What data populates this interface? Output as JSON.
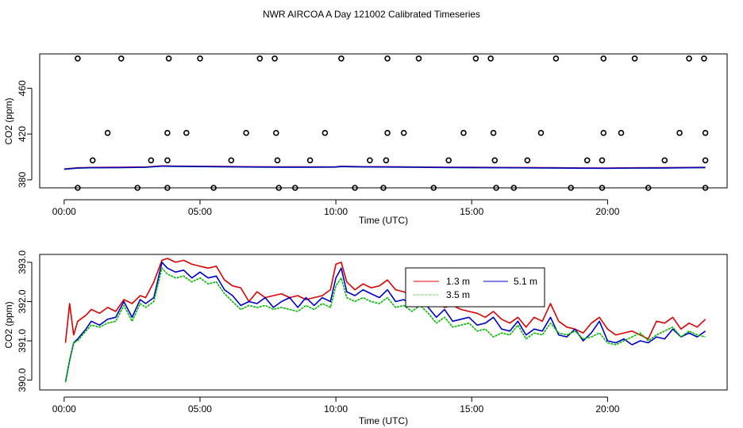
{
  "page_title": "NWR AIRCOA A  Day 121002  Calibrated Timeseries",
  "chart_data": [
    {
      "type": "line",
      "panel": "top",
      "xlabel": "Time (UTC)",
      "ylabel": "CO2 (ppm)",
      "xlim": [
        -0.9,
        24.4
      ],
      "ylim": [
        373,
        490
      ],
      "x_ticks": [
        0,
        5,
        10,
        15,
        20
      ],
      "x_tick_labels": [
        "00:00",
        "05:00",
        "10:00",
        "15:00",
        "20:00"
      ],
      "y_ticks": [
        380,
        420,
        460
      ],
      "y_tick_labels": [
        "380",
        "420",
        "460"
      ],
      "line_series": [
        {
          "name": "1.3 m",
          "color": "#dd0000",
          "x": [
            0,
            0.5,
            1,
            2,
            3,
            3.6,
            4,
            5,
            6,
            7,
            8,
            9,
            10,
            10.2,
            11,
            12,
            13,
            14,
            15,
            16,
            17,
            18,
            19,
            20,
            21,
            22,
            23,
            23.6
          ],
          "y": [
            389.5,
            390.5,
            390.8,
            390.9,
            391.2,
            392.2,
            392.0,
            391.8,
            391.6,
            391.4,
            391.3,
            391.3,
            391.4,
            391.8,
            391.5,
            391.4,
            391.2,
            391.0,
            390.9,
            390.8,
            390.7,
            390.6,
            390.4,
            390.3,
            390.5,
            390.6,
            390.8,
            390.9
          ]
        },
        {
          "name": "3.5 m",
          "color": "#00bb00",
          "x": [
            0,
            0.5,
            1,
            2,
            3,
            3.6,
            4,
            5,
            6,
            7,
            8,
            9,
            10,
            10.2,
            11,
            12,
            13,
            14,
            15,
            16,
            17,
            18,
            19,
            20,
            21,
            22,
            23,
            23.6
          ],
          "y": [
            389.2,
            390.2,
            390.5,
            390.6,
            390.9,
            391.9,
            391.7,
            391.5,
            391.3,
            391.1,
            391.0,
            391.0,
            391.1,
            391.5,
            391.2,
            391.1,
            390.9,
            390.7,
            390.6,
            390.5,
            390.4,
            390.3,
            390.1,
            390.0,
            390.2,
            390.3,
            390.5,
            390.6
          ]
        },
        {
          "name": "5.1 m",
          "color": "#0000cc",
          "x": [
            0,
            0.5,
            1,
            2,
            3,
            3.6,
            4,
            5,
            6,
            7,
            8,
            9,
            10,
            10.2,
            11,
            12,
            13,
            14,
            15,
            16,
            17,
            18,
            19,
            20,
            21,
            22,
            23,
            23.6
          ],
          "y": [
            389.3,
            390.3,
            390.6,
            390.7,
            391.0,
            392.0,
            391.8,
            391.6,
            391.4,
            391.2,
            391.1,
            391.1,
            391.2,
            391.6,
            391.3,
            391.2,
            391.0,
            390.8,
            390.7,
            390.6,
            390.5,
            390.4,
            390.2,
            390.1,
            390.3,
            390.4,
            390.6,
            390.7
          ]
        }
      ],
      "scatter_series": {
        "name": "flags",
        "marker": "open-circle",
        "x": [
          0.5,
          2.1,
          3.85,
          5.0,
          7.2,
          7.75,
          10.2,
          11.9,
          13.05,
          15.15,
          15.7,
          18.1,
          19.85,
          21.0,
          23.0,
          23.55,
          1.6,
          3.8,
          4.5,
          6.7,
          7.8,
          9.6,
          11.9,
          12.5,
          14.7,
          15.8,
          17.55,
          19.85,
          20.5,
          22.65,
          23.6,
          1.05,
          3.2,
          3.8,
          6.15,
          7.85,
          9.05,
          11.25,
          11.85,
          14.15,
          15.85,
          17.05,
          19.25,
          19.8,
          22.1,
          23.6,
          0.5,
          2.7,
          3.8,
          5.5,
          7.9,
          8.5,
          10.7,
          11.75,
          13.6,
          15.9,
          16.55,
          18.65,
          19.8,
          21.5,
          23.6
        ],
        "y": [
          486,
          486,
          486,
          486,
          486,
          486,
          486,
          486,
          486,
          486,
          486,
          486,
          486,
          486,
          486,
          486,
          421,
          421,
          421,
          421,
          421,
          421,
          421,
          421,
          421,
          421,
          421,
          421,
          421,
          421,
          421,
          397,
          397,
          397,
          397,
          397,
          397,
          397,
          397,
          397,
          397,
          397,
          397,
          397,
          397,
          397,
          373,
          373,
          373,
          373,
          373,
          373,
          373,
          373,
          373,
          373,
          373,
          373,
          373,
          373,
          373
        ]
      }
    },
    {
      "type": "line",
      "panel": "bottom",
      "xlabel": "Time (UTC)",
      "ylabel": "CO2 (ppm)",
      "xlim": [
        -0.9,
        24.4
      ],
      "ylim": [
        389.75,
        393.2
      ],
      "x_ticks": [
        0,
        5,
        10,
        15,
        20
      ],
      "x_tick_labels": [
        "00:00",
        "05:00",
        "10:00",
        "15:00",
        "20:00"
      ],
      "y_ticks": [
        390.0,
        391.0,
        392.0,
        393.0
      ],
      "y_tick_labels": [
        "390.0",
        "391.0",
        "392.0",
        "393.0"
      ],
      "legend": {
        "position": "top-center-right",
        "entries": [
          {
            "label": "1.3 m",
            "color": "#dd0000"
          },
          {
            "label": "5.1 m",
            "color": "#0000cc"
          },
          {
            "label": "3.5 m",
            "color": "#00bb00"
          }
        ]
      },
      "series": [
        {
          "name": "1.3 m",
          "color": "#dd0000",
          "x": [
            0.05,
            0.2,
            0.35,
            0.5,
            0.8,
            1.0,
            1.3,
            1.6,
            1.9,
            2.2,
            2.5,
            2.8,
            3.0,
            3.3,
            3.6,
            3.8,
            4.1,
            4.4,
            4.7,
            5.0,
            5.3,
            5.6,
            5.9,
            6.2,
            6.5,
            6.8,
            7.1,
            7.4,
            7.7,
            8.0,
            8.3,
            8.6,
            8.9,
            9.2,
            9.5,
            9.8,
            10.0,
            10.2,
            10.4,
            10.7,
            11.0,
            11.3,
            11.6,
            11.9,
            12.2,
            12.5,
            12.8,
            13.1,
            13.4,
            13.7,
            14.0,
            14.3,
            14.6,
            14.9,
            15.2,
            15.5,
            15.8,
            16.1,
            16.4,
            16.7,
            17.0,
            17.3,
            17.6,
            17.9,
            18.2,
            18.5,
            18.8,
            19.1,
            19.4,
            19.7,
            20.0,
            20.3,
            20.6,
            20.9,
            21.2,
            21.5,
            21.8,
            22.1,
            22.4,
            22.7,
            23.0,
            23.3,
            23.6
          ],
          "y": [
            390.95,
            391.95,
            391.15,
            391.5,
            391.65,
            391.8,
            391.7,
            391.85,
            391.75,
            392.05,
            391.95,
            392.15,
            392.1,
            392.5,
            393.05,
            393.1,
            393.0,
            393.05,
            392.95,
            392.9,
            392.85,
            392.9,
            392.55,
            392.4,
            392.35,
            392.0,
            392.25,
            392.1,
            392.15,
            392.2,
            392.1,
            392.15,
            392.05,
            392.1,
            392.15,
            392.3,
            392.95,
            393.0,
            392.5,
            392.3,
            392.45,
            392.35,
            392.4,
            392.55,
            392.3,
            392.25,
            392.15,
            392.1,
            392.2,
            392.0,
            391.85,
            391.9,
            391.8,
            391.75,
            391.7,
            391.6,
            391.75,
            391.55,
            391.45,
            391.6,
            391.35,
            391.6,
            391.5,
            391.95,
            391.5,
            391.35,
            391.3,
            391.2,
            391.45,
            391.6,
            391.3,
            391.15,
            391.2,
            391.25,
            391.15,
            391.05,
            391.5,
            391.45,
            391.6,
            391.3,
            391.45,
            391.35,
            391.55
          ]
        },
        {
          "name": "5.1 m",
          "color": "#0000cc",
          "x": [
            0.05,
            0.2,
            0.35,
            0.5,
            0.8,
            1.0,
            1.3,
            1.6,
            1.9,
            2.2,
            2.5,
            2.8,
            3.0,
            3.3,
            3.6,
            3.8,
            4.1,
            4.4,
            4.7,
            5.0,
            5.3,
            5.6,
            5.9,
            6.2,
            6.5,
            6.8,
            7.1,
            7.4,
            7.7,
            8.0,
            8.3,
            8.6,
            8.9,
            9.2,
            9.5,
            9.8,
            10.0,
            10.2,
            10.4,
            10.7,
            11.0,
            11.3,
            11.6,
            11.9,
            12.2,
            12.5,
            12.8,
            13.1,
            13.4,
            13.7,
            14.0,
            14.3,
            14.6,
            14.9,
            15.2,
            15.5,
            15.8,
            16.1,
            16.4,
            16.7,
            17.0,
            17.3,
            17.6,
            17.9,
            18.2,
            18.5,
            18.8,
            19.1,
            19.4,
            19.7,
            20.0,
            20.3,
            20.6,
            20.9,
            21.2,
            21.5,
            21.8,
            22.1,
            22.4,
            22.7,
            23.0,
            23.3,
            23.6
          ],
          "y": [
            389.95,
            390.5,
            390.95,
            391.05,
            391.3,
            391.5,
            391.4,
            391.55,
            391.6,
            392.0,
            391.6,
            392.05,
            391.95,
            392.1,
            393.0,
            392.85,
            392.75,
            392.8,
            392.6,
            392.75,
            392.6,
            392.65,
            392.3,
            392.15,
            391.9,
            392.0,
            391.95,
            392.1,
            391.85,
            392.0,
            392.1,
            391.85,
            392.1,
            391.9,
            392.1,
            392.0,
            392.6,
            392.85,
            392.25,
            392.15,
            392.3,
            392.2,
            392.1,
            392.3,
            392.0,
            392.05,
            391.9,
            392.15,
            391.85,
            391.6,
            391.8,
            391.5,
            391.55,
            391.6,
            391.4,
            391.45,
            391.6,
            391.3,
            391.25,
            391.5,
            391.15,
            391.3,
            391.25,
            391.6,
            391.15,
            391.1,
            391.3,
            391.0,
            391.2,
            391.5,
            391.0,
            390.95,
            391.05,
            390.9,
            391.0,
            390.95,
            391.1,
            391.05,
            391.3,
            391.1,
            391.2,
            391.1,
            391.25
          ]
        },
        {
          "name": "3.5 m",
          "color": "#00bb00",
          "x": [
            0.05,
            0.2,
            0.35,
            0.5,
            0.8,
            1.0,
            1.3,
            1.6,
            1.9,
            2.2,
            2.5,
            2.8,
            3.0,
            3.3,
            3.6,
            3.8,
            4.1,
            4.4,
            4.7,
            5.0,
            5.3,
            5.6,
            5.9,
            6.2,
            6.5,
            6.8,
            7.1,
            7.4,
            7.7,
            8.0,
            8.3,
            8.6,
            8.9,
            9.2,
            9.5,
            9.8,
            10.0,
            10.2,
            10.4,
            10.7,
            11.0,
            11.3,
            11.6,
            11.9,
            12.2,
            12.5,
            12.8,
            13.1,
            13.4,
            13.7,
            14.0,
            14.3,
            14.6,
            14.9,
            15.2,
            15.5,
            15.8,
            16.1,
            16.4,
            16.7,
            17.0,
            17.3,
            17.6,
            17.9,
            18.2,
            18.5,
            18.8,
            19.1,
            19.4,
            19.7,
            20.0,
            20.3,
            20.6,
            20.9,
            21.2,
            21.5,
            21.8,
            22.1,
            22.4,
            22.7,
            23.0,
            23.3,
            23.6
          ],
          "y": [
            389.95,
            390.5,
            390.95,
            391.0,
            391.25,
            391.4,
            391.35,
            391.45,
            391.5,
            391.9,
            391.5,
            391.95,
            391.85,
            392.0,
            392.85,
            392.7,
            392.6,
            392.65,
            392.5,
            392.6,
            392.45,
            392.5,
            392.2,
            392.0,
            391.8,
            391.9,
            391.85,
            391.9,
            391.8,
            391.85,
            391.8,
            391.75,
            391.9,
            391.8,
            391.95,
            391.85,
            392.4,
            392.6,
            392.1,
            392.0,
            392.1,
            392.0,
            391.95,
            392.1,
            391.85,
            391.9,
            391.75,
            391.9,
            391.7,
            391.45,
            391.6,
            391.35,
            391.4,
            391.45,
            391.25,
            391.3,
            391.1,
            391.2,
            391.15,
            391.4,
            391.05,
            391.2,
            391.15,
            391.45,
            391.2,
            391.15,
            391.25,
            391.05,
            391.1,
            391.2,
            390.95,
            390.9,
            391.0,
            391.1,
            391.2,
            391.0,
            391.15,
            391.25,
            391.35,
            391.1,
            391.25,
            391.15,
            391.1
          ]
        }
      ]
    }
  ]
}
